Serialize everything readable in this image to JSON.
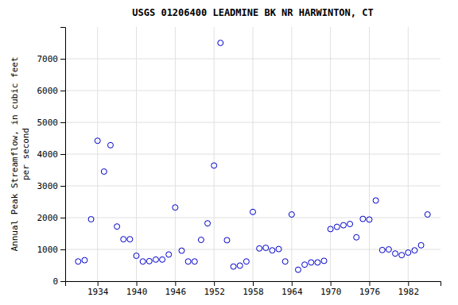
{
  "chart_data": {
    "type": "scatter",
    "title": "USGS 01206400 LEADMINE BK NR HARWINTON, CT",
    "ylabel": "Annual Peak Streamflow, in cubic feet\nper second",
    "x": [
      1931,
      1932,
      1933,
      1934,
      1935,
      1936,
      1937,
      1938,
      1939,
      1940,
      1941,
      1942,
      1943,
      1944,
      1945,
      1946,
      1947,
      1948,
      1949,
      1950,
      1951,
      1952,
      1953,
      1954,
      1955,
      1956,
      1957,
      1958,
      1959,
      1960,
      1961,
      1962,
      1963,
      1964,
      1965,
      1966,
      1967,
      1968,
      1969,
      1970,
      1971,
      1972,
      1973,
      1974,
      1975,
      1976,
      1977,
      1978,
      1979,
      1980,
      1981,
      1982,
      1983,
      1984,
      1985
    ],
    "values": [
      620,
      660,
      1950,
      4420,
      3450,
      4280,
      1720,
      1320,
      1320,
      800,
      620,
      630,
      680,
      680,
      840,
      2320,
      960,
      620,
      620,
      1300,
      1820,
      3640,
      7500,
      1290,
      460,
      490,
      620,
      2180,
      1030,
      1050,
      970,
      1010,
      620,
      2100,
      360,
      520,
      590,
      590,
      640,
      1640,
      1710,
      1760,
      1800,
      1380,
      1960,
      1940,
      2540,
      980,
      1000,
      870,
      820,
      900,
      970,
      1130,
      2100
    ],
    "color": "#0000cc",
    "marker": "circle-open",
    "xlim": [
      1929,
      1987
    ],
    "ylim": [
      0,
      8000
    ],
    "xticks": [
      1934,
      1940,
      1946,
      1952,
      1958,
      1964,
      1970,
      1976,
      1982
    ],
    "yticks": [
      0,
      1000,
      2000,
      3000,
      4000,
      5000,
      6000,
      7000
    ],
    "grid": true
  }
}
